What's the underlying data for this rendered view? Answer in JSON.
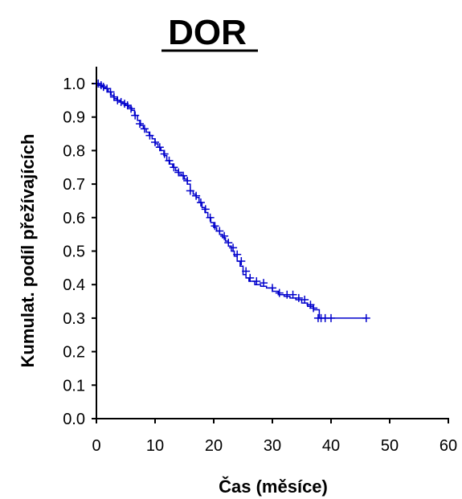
{
  "chart_data": {
    "type": "line",
    "title": "DOR",
    "xlabel": "Čas (měsíce)",
    "ylabel": "Kumulat. podíl přežívajících",
    "xlim": [
      0,
      60
    ],
    "ylim": [
      0,
      1.0
    ],
    "x_ticks": [
      "0",
      "10",
      "20",
      "30",
      "40",
      "50",
      "60"
    ],
    "y_ticks": [
      "0.0",
      "0.1",
      "0.2",
      "0.3",
      "0.4",
      "0.5",
      "0.6",
      "0.7",
      "0.8",
      "0.9",
      "1.0"
    ],
    "grid": false,
    "series": [
      {
        "color": "#0000CC",
        "step": true,
        "x": [
          0,
          0.5,
          1,
          1.5,
          2,
          2.5,
          3,
          3.5,
          4,
          4.5,
          5,
          5.5,
          6,
          6.5,
          7,
          7.5,
          8,
          8.5,
          9,
          9.5,
          10,
          10.5,
          11,
          11.5,
          12,
          12.5,
          13,
          13.5,
          14,
          14.5,
          15,
          15.5,
          16,
          16.5,
          17,
          17.5,
          18,
          18.5,
          19,
          19.5,
          20,
          20.5,
          21,
          21.5,
          22,
          22.5,
          23,
          23.5,
          24,
          24.5,
          25,
          25.5,
          26,
          27,
          28,
          29,
          30,
          31,
          32,
          33,
          34,
          35,
          36,
          37,
          38,
          40,
          46
        ],
        "y": [
          1.0,
          0.995,
          0.99,
          0.985,
          0.975,
          0.965,
          0.955,
          0.95,
          0.945,
          0.94,
          0.935,
          0.93,
          0.92,
          0.905,
          0.89,
          0.875,
          0.865,
          0.855,
          0.845,
          0.835,
          0.82,
          0.81,
          0.8,
          0.785,
          0.77,
          0.76,
          0.75,
          0.74,
          0.73,
          0.725,
          0.715,
          0.7,
          0.68,
          0.67,
          0.66,
          0.645,
          0.63,
          0.615,
          0.6,
          0.585,
          0.57,
          0.56,
          0.55,
          0.54,
          0.53,
          0.515,
          0.5,
          0.485,
          0.47,
          0.455,
          0.43,
          0.42,
          0.41,
          0.4,
          0.395,
          0.39,
          0.38,
          0.37,
          0.365,
          0.36,
          0.355,
          0.345,
          0.335,
          0.325,
          0.3,
          0.3,
          0.3
        ]
      }
    ],
    "censored": [
      {
        "x": 0.3,
        "y": 1.0
      },
      {
        "x": 0.8,
        "y": 0.995
      },
      {
        "x": 1.2,
        "y": 0.99
      },
      {
        "x": 1.8,
        "y": 0.985
      },
      {
        "x": 2.4,
        "y": 0.975
      },
      {
        "x": 3.0,
        "y": 0.96
      },
      {
        "x": 3.6,
        "y": 0.95
      },
      {
        "x": 4.2,
        "y": 0.945
      },
      {
        "x": 4.8,
        "y": 0.94
      },
      {
        "x": 5.3,
        "y": 0.935
      },
      {
        "x": 5.9,
        "y": 0.925
      },
      {
        "x": 6.6,
        "y": 0.905
      },
      {
        "x": 7.4,
        "y": 0.88
      },
      {
        "x": 8.2,
        "y": 0.865
      },
      {
        "x": 9.1,
        "y": 0.845
      },
      {
        "x": 10.0,
        "y": 0.825
      },
      {
        "x": 10.8,
        "y": 0.81
      },
      {
        "x": 11.6,
        "y": 0.79
      },
      {
        "x": 12.4,
        "y": 0.77
      },
      {
        "x": 13.2,
        "y": 0.75
      },
      {
        "x": 14.0,
        "y": 0.735
      },
      {
        "x": 14.8,
        "y": 0.725
      },
      {
        "x": 15.5,
        "y": 0.71
      },
      {
        "x": 16.0,
        "y": 0.68
      },
      {
        "x": 17.0,
        "y": 0.665
      },
      {
        "x": 17.8,
        "y": 0.645
      },
      {
        "x": 18.6,
        "y": 0.625
      },
      {
        "x": 19.4,
        "y": 0.6
      },
      {
        "x": 20.2,
        "y": 0.575
      },
      {
        "x": 21.0,
        "y": 0.56
      },
      {
        "x": 21.8,
        "y": 0.545
      },
      {
        "x": 22.5,
        "y": 0.525
      },
      {
        "x": 23.3,
        "y": 0.51
      },
      {
        "x": 24.0,
        "y": 0.49
      },
      {
        "x": 24.7,
        "y": 0.47
      },
      {
        "x": 25.5,
        "y": 0.44
      },
      {
        "x": 26.2,
        "y": 0.42
      },
      {
        "x": 27.3,
        "y": 0.41
      },
      {
        "x": 28.5,
        "y": 0.405
      },
      {
        "x": 30.0,
        "y": 0.39
      },
      {
        "x": 31.2,
        "y": 0.375
      },
      {
        "x": 32.5,
        "y": 0.37
      },
      {
        "x": 33.5,
        "y": 0.37
      },
      {
        "x": 34.5,
        "y": 0.36
      },
      {
        "x": 35.5,
        "y": 0.355
      },
      {
        "x": 36.5,
        "y": 0.34
      },
      {
        "x": 37.0,
        "y": 0.33
      },
      {
        "x": 37.8,
        "y": 0.3
      },
      {
        "x": 38.3,
        "y": 0.3
      },
      {
        "x": 39.0,
        "y": 0.3
      },
      {
        "x": 40.0,
        "y": 0.3
      },
      {
        "x": 46.0,
        "y": 0.3
      }
    ]
  }
}
